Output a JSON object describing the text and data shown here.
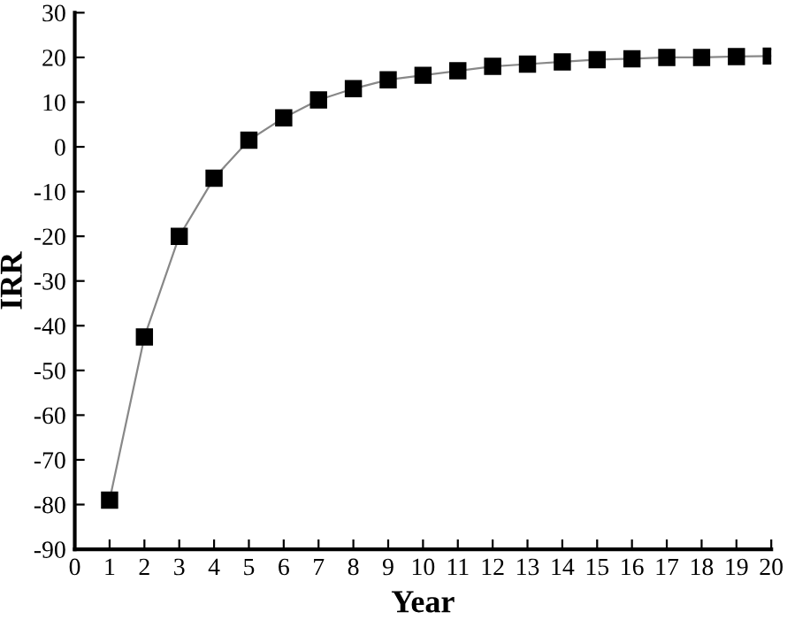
{
  "chart_data": {
    "type": "line",
    "xlabel": "Year",
    "ylabel": "IRR",
    "x": [
      1,
      2,
      3,
      4,
      5,
      6,
      7,
      8,
      9,
      10,
      11,
      12,
      13,
      14,
      15,
      16,
      17,
      18,
      19,
      20
    ],
    "series": [
      {
        "color": "#000000",
        "values": [
          -79,
          -42.5,
          -20,
          -7,
          1.5,
          6.5,
          10.5,
          13,
          15,
          16,
          17,
          18,
          18.5,
          19,
          19.5,
          19.7,
          20,
          20,
          20.2,
          20.3
        ]
      }
    ],
    "xlim": [
      0,
      20
    ],
    "xticks": [
      0,
      1,
      2,
      3,
      4,
      5,
      6,
      7,
      8,
      9,
      10,
      11,
      12,
      13,
      14,
      15,
      16,
      17,
      18,
      19,
      20
    ],
    "ylim": [
      -90,
      30
    ],
    "yticks": [
      -90,
      -80,
      -70,
      -60,
      -50,
      -40,
      -30,
      -20,
      -10,
      0,
      10,
      20,
      30
    ],
    "marker": "square",
    "line_style": "solid",
    "grid": false,
    "legend": false
  }
}
